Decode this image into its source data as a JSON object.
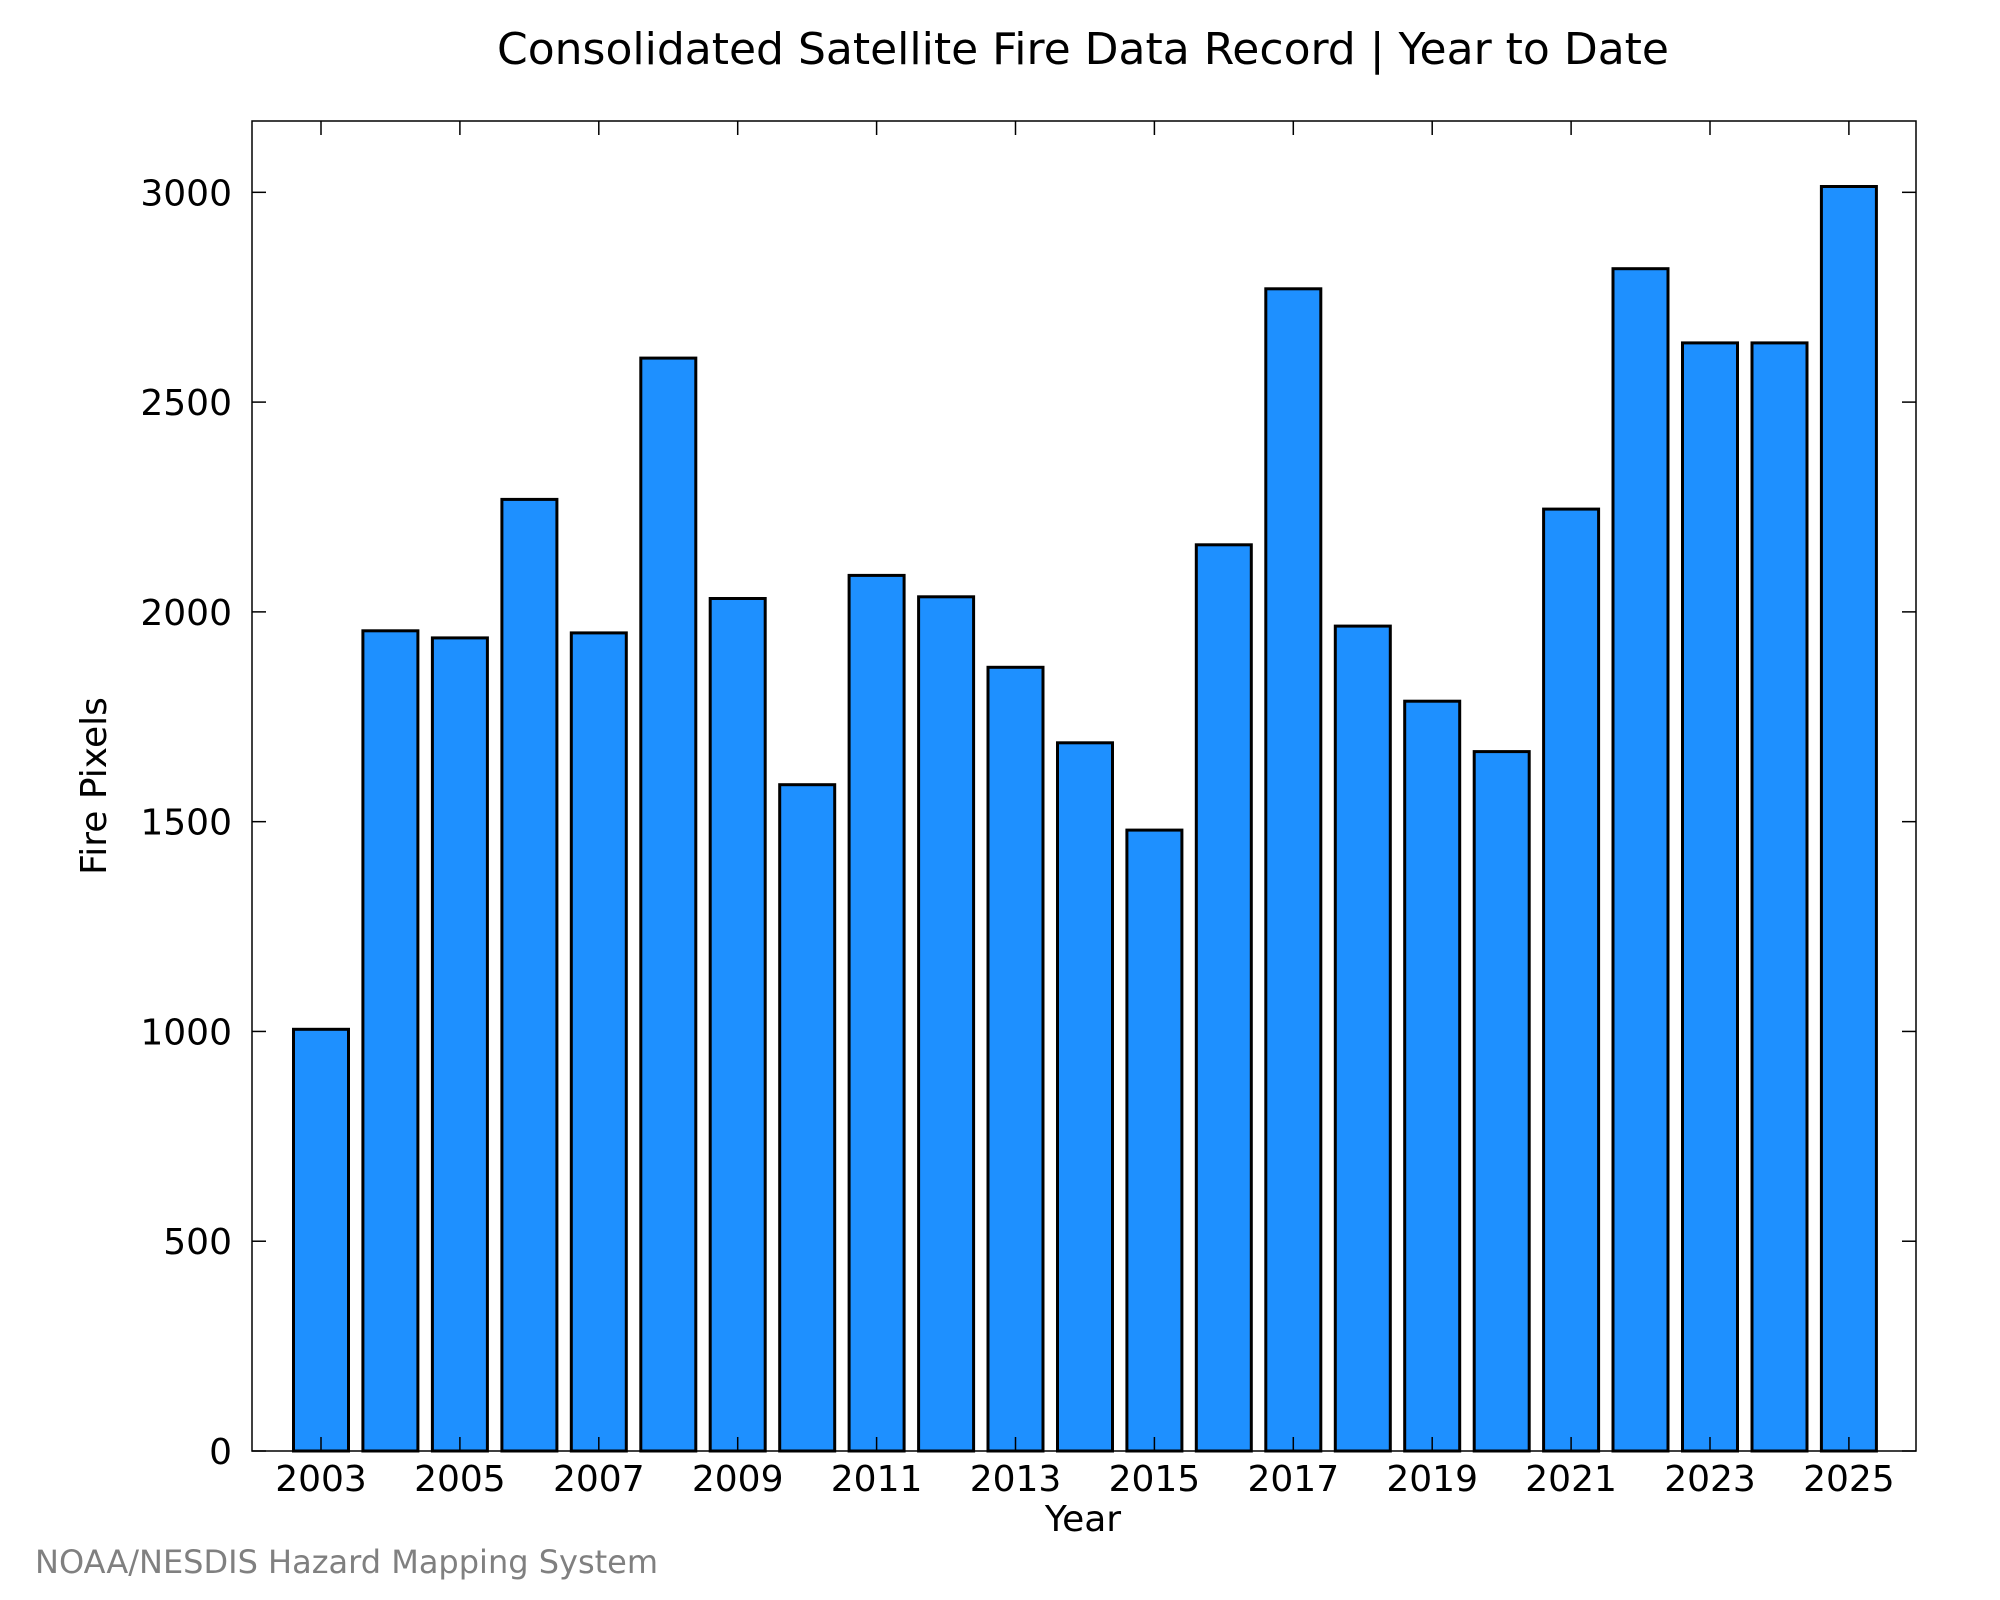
{
  "chart_data": {
    "type": "bar",
    "title": "Consolidated Satellite Fire Data Record | Year to Date",
    "xlabel": "Year",
    "ylabel": "Fire Pixels",
    "categories": [
      "2003",
      "2004",
      "2005",
      "2006",
      "2007",
      "2008",
      "2009",
      "2010",
      "2011",
      "2012",
      "2013",
      "2014",
      "2015",
      "2016",
      "2017",
      "2018",
      "2019",
      "2020",
      "2021",
      "2022",
      "2023",
      "2024",
      "2025"
    ],
    "values": [
      1005,
      1955,
      1938,
      2268,
      1950,
      2605,
      2032,
      1588,
      2087,
      2036,
      1868,
      1688,
      1480,
      2160,
      2770,
      1966,
      1787,
      1667,
      2245,
      2818,
      2641,
      2641,
      3014
    ],
    "x_tick_labels": [
      "2003",
      "2005",
      "2007",
      "2009",
      "2011",
      "2013",
      "2015",
      "2017",
      "2019",
      "2021",
      "2023",
      "2025"
    ],
    "y_ticks": [
      0,
      500,
      1000,
      1500,
      2000,
      2500,
      3000
    ],
    "ylim": [
      0,
      3170
    ],
    "bar_color": "#1e90ff",
    "bar_edge_color": "#000000",
    "grid": false
  },
  "credit": "NOAA/NESDIS Hazard Mapping System"
}
